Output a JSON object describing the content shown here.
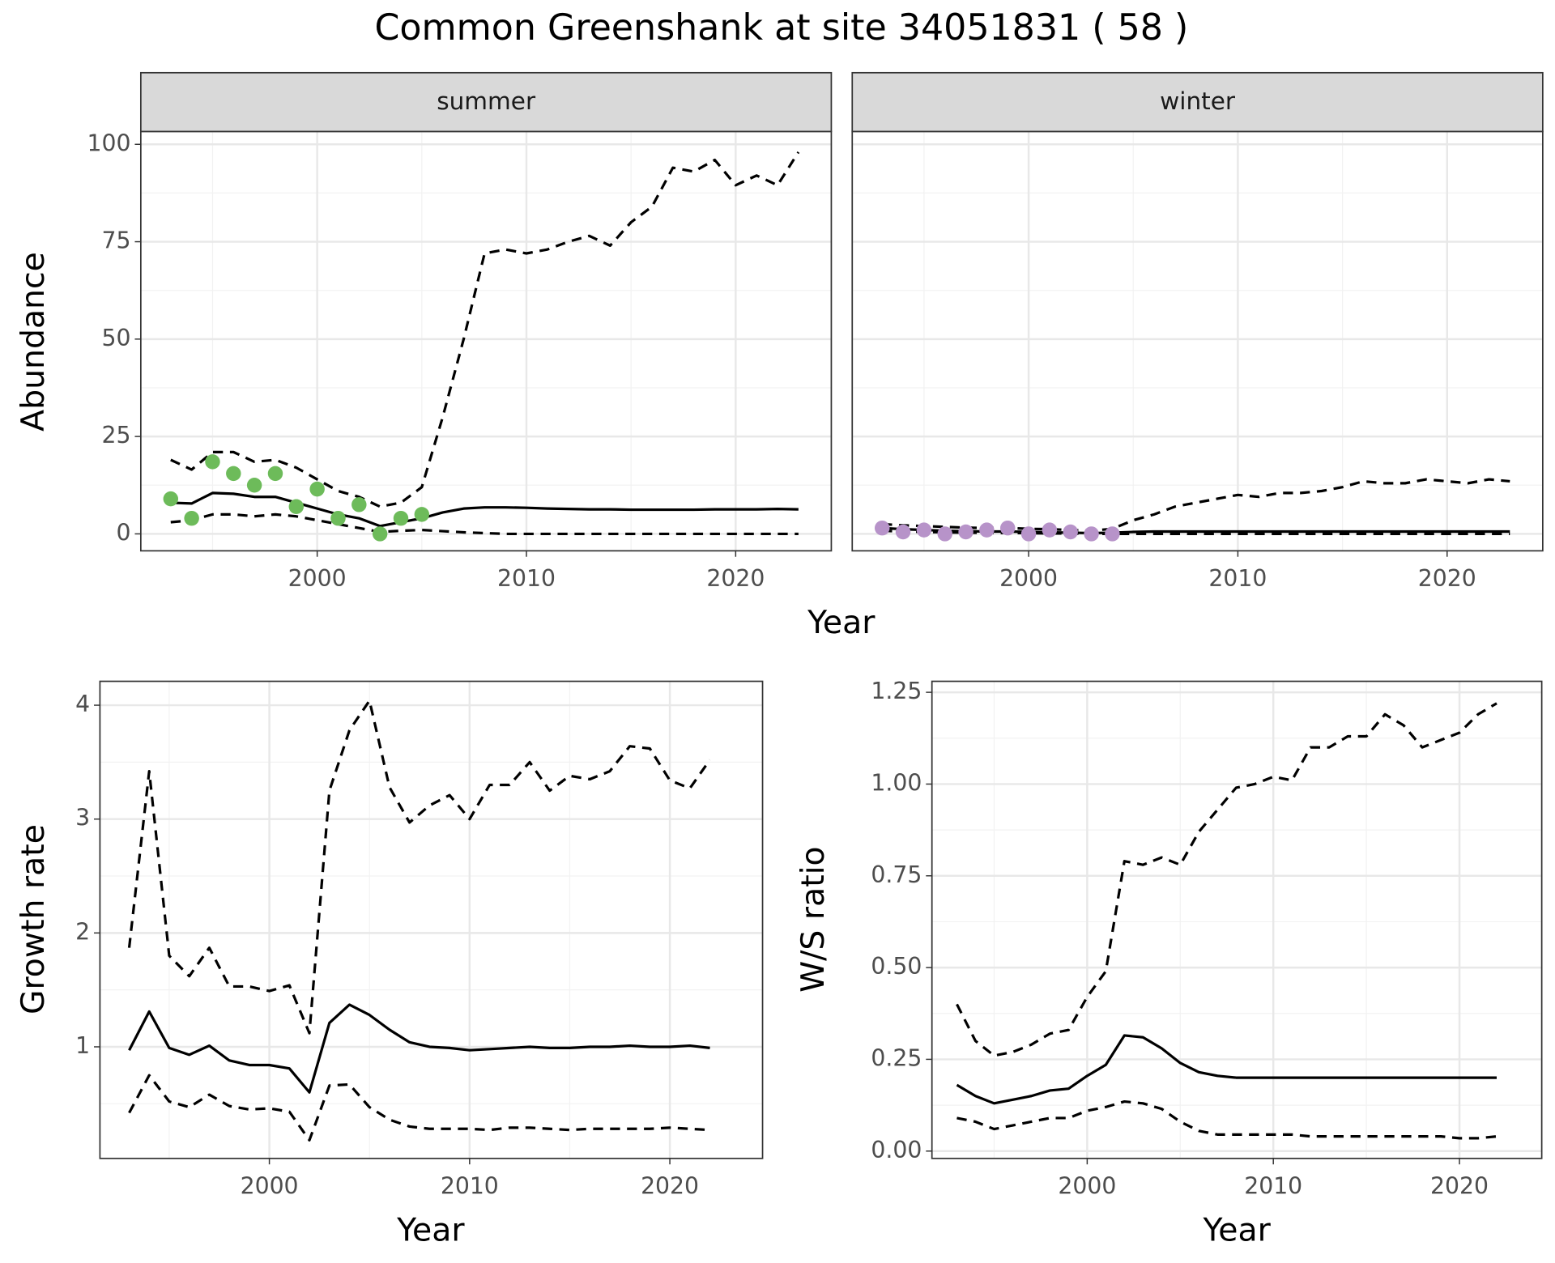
{
  "title": "Common Greenshank at site 34051831 ( 58 )",
  "chart_data": [
    {
      "type": "line",
      "xlabel": "Year",
      "ylabel": "Abundance",
      "xlim": [
        1991.57,
        2024.57
      ],
      "ylim": [
        -4.35,
        103.3
      ],
      "xticks": [
        2000,
        2010,
        2020
      ],
      "yticks": [
        0,
        25,
        50,
        75,
        100
      ],
      "grid": true,
      "facets": [
        {
          "label": "summer",
          "x": [
            1993,
            1994,
            1995,
            1996,
            1997,
            1998,
            1999,
            2000,
            2001,
            2002,
            2003,
            2004,
            2005,
            2006,
            2007,
            2008,
            2009,
            2010,
            2011,
            2012,
            2013,
            2014,
            2015,
            2016,
            2017,
            2018,
            2019,
            2020,
            2021,
            2022,
            2023
          ],
          "series": [
            {
              "type": "line",
              "linestyle": "solid",
              "color": "#000000",
              "values": [
                8,
                7.8,
                10.5,
                10.3,
                9.5,
                9.5,
                8,
                6.5,
                5,
                4,
                2,
                3,
                4,
                5.5,
                6.5,
                6.8,
                6.8,
                6.7,
                6.5,
                6.4,
                6.3,
                6.3,
                6.2,
                6.2,
                6.2,
                6.2,
                6.3,
                6.3,
                6.3,
                6.4,
                6.3
              ]
            },
            {
              "type": "line",
              "linestyle": "dashed",
              "color": "#000000",
              "values": [
                3,
                3.5,
                5,
                5,
                4.5,
                5,
                4.5,
                3.5,
                2.5,
                1.5,
                0.5,
                0.8,
                1,
                0.7,
                0.4,
                0.2,
                0,
                0,
                0,
                0,
                0,
                0,
                0,
                0,
                0,
                0,
                0,
                0,
                0,
                0,
                0
              ]
            },
            {
              "type": "line",
              "linestyle": "dashed",
              "color": "#000000",
              "values": [
                19,
                16.5,
                21,
                21,
                18.5,
                19,
                17,
                14,
                11,
                9.5,
                7,
                8,
                12,
                30,
                50,
                72,
                73,
                72,
                73,
                75,
                76.5,
                74,
                80,
                84,
                94,
                93,
                96,
                89.5,
                92,
                89.5,
                98
              ]
            },
            {
              "type": "scatter",
              "color": "#6dbb5a",
              "values": [
                9,
                4,
                18.5,
                15.5,
                12.5,
                15.5,
                7,
                11.5,
                4,
                7.5,
                0,
                4,
                5,
                null,
                null,
                null,
                null,
                null,
                null,
                null,
                null,
                null,
                null,
                null,
                null,
                null,
                null,
                null,
                null,
                null,
                null
              ]
            }
          ]
        },
        {
          "label": "winter",
          "x": [
            1993,
            1994,
            1995,
            1996,
            1997,
            1998,
            1999,
            2000,
            2001,
            2002,
            2003,
            2004,
            2005,
            2006,
            2007,
            2008,
            2009,
            2010,
            2011,
            2012,
            2013,
            2014,
            2015,
            2016,
            2017,
            2018,
            2019,
            2020,
            2021,
            2022,
            2023
          ],
          "series": [
            {
              "type": "line",
              "linestyle": "solid",
              "color": "#000000",
              "values": [
                1.5,
                1.2,
                1.0,
                0.8,
                0.7,
                0.6,
                0.6,
                0.5,
                0.4,
                0.3,
                0.2,
                0.3,
                0.5,
                0.6,
                0.6,
                0.6,
                0.6,
                0.6,
                0.6,
                0.6,
                0.6,
                0.6,
                0.6,
                0.6,
                0.6,
                0.6,
                0.6,
                0.6,
                0.6,
                0.6,
                0.6
              ]
            },
            {
              "type": "line",
              "linestyle": "dashed",
              "color": "#000000",
              "values": [
                0.8,
                0.6,
                0.5,
                0.4,
                0.3,
                0.3,
                0.2,
                0.2,
                0.1,
                0.1,
                0,
                0,
                0,
                0,
                0,
                0,
                0,
                0,
                0,
                0,
                0,
                0,
                0,
                0,
                0,
                0,
                0,
                0,
                0,
                0,
                0
              ]
            },
            {
              "type": "line",
              "linestyle": "dashed",
              "color": "#000000",
              "values": [
                2.5,
                2.2,
                2.0,
                1.8,
                1.6,
                1.5,
                1.5,
                1.3,
                1.2,
                1.0,
                0.8,
                1.3,
                3.5,
                5,
                7,
                8,
                9,
                10,
                9.5,
                10.5,
                10.5,
                11,
                12,
                13.5,
                13,
                13,
                14,
                13.5,
                13,
                14,
                13.5
              ]
            },
            {
              "type": "scatter",
              "color": "#b793c9",
              "values": [
                1.5,
                0.5,
                1,
                0,
                0.5,
                1,
                1.5,
                0,
                1,
                0.5,
                0,
                0,
                null,
                null,
                null,
                null,
                null,
                null,
                null,
                null,
                null,
                null,
                null,
                null,
                null,
                null,
                null,
                null,
                null,
                null,
                null
              ]
            }
          ]
        }
      ]
    },
    {
      "type": "line",
      "xlabel": "Year",
      "ylabel": "Growth rate",
      "xlim": [
        1991.54,
        2024.63
      ],
      "ylim": [
        0.02,
        4.21
      ],
      "xticks": [
        2000,
        2010,
        2020
      ],
      "yticks": [
        1,
        2,
        3,
        4
      ],
      "grid": true,
      "facets": [
        {
          "x": [
            1993,
            1994,
            1995,
            1996,
            1997,
            1998,
            1999,
            2000,
            2001,
            2002,
            2003,
            2004,
            2005,
            2006,
            2007,
            2008,
            2009,
            2010,
            2011,
            2012,
            2013,
            2014,
            2015,
            2016,
            2017,
            2018,
            2019,
            2020,
            2021,
            2022
          ],
          "series": [
            {
              "type": "line",
              "linestyle": "solid",
              "color": "#000000",
              "values": [
                0.97,
                1.31,
                0.99,
                0.93,
                1.01,
                0.88,
                0.84,
                0.84,
                0.81,
                0.6,
                1.21,
                1.37,
                1.28,
                1.15,
                1.04,
                1.0,
                0.99,
                0.97,
                0.98,
                0.99,
                1.0,
                0.99,
                0.99,
                1.0,
                1.0,
                1.01,
                1.0,
                1.0,
                1.01,
                0.99
              ]
            },
            {
              "type": "line",
              "linestyle": "dashed",
              "color": "#000000",
              "values": [
                0.42,
                0.75,
                0.52,
                0.47,
                0.58,
                0.48,
                0.45,
                0.46,
                0.43,
                0.18,
                0.66,
                0.67,
                0.47,
                0.36,
                0.3,
                0.28,
                0.28,
                0.28,
                0.27,
                0.29,
                0.29,
                0.28,
                0.27,
                0.28,
                0.28,
                0.28,
                0.28,
                0.29,
                0.28,
                0.27
              ]
            },
            {
              "type": "line",
              "linestyle": "dashed",
              "color": "#000000",
              "values": [
                1.87,
                3.42,
                1.8,
                1.62,
                1.87,
                1.53,
                1.53,
                1.49,
                1.54,
                1.12,
                3.25,
                3.78,
                4.04,
                3.28,
                2.97,
                3.12,
                3.21,
                3.0,
                3.3,
                3.3,
                3.5,
                3.25,
                3.38,
                3.35,
                3.42,
                3.64,
                3.62,
                3.34,
                3.27,
                3.52
              ]
            }
          ]
        }
      ]
    },
    {
      "type": "line",
      "xlabel": "Year",
      "ylabel": "W/S ratio",
      "xlim": [
        1991.66,
        2024.42
      ],
      "ylim": [
        -0.02,
        1.28
      ],
      "xticks": [
        2000,
        2010,
        2020
      ],
      "yticks": [
        {
          "value": 0,
          "label": "0.00"
        },
        0.25,
        {
          "value": 0.5,
          "label": "0.50"
        },
        {
          "value": 0.75,
          "label": "0.75"
        },
        {
          "value": 1,
          "label": "1.00"
        },
        {
          "value": 1.25,
          "label": "1.25"
        }
      ],
      "grid": true,
      "facets": [
        {
          "x": [
            1993,
            1994,
            1995,
            1996,
            1997,
            1998,
            1999,
            2000,
            2001,
            2002,
            2003,
            2004,
            2005,
            2006,
            2007,
            2008,
            2009,
            2010,
            2011,
            2012,
            2013,
            2014,
            2015,
            2016,
            2017,
            2018,
            2019,
            2020,
            2021,
            2022
          ],
          "series": [
            {
              "type": "line",
              "linestyle": "solid",
              "color": "#000000",
              "values": [
                0.18,
                0.15,
                0.13,
                0.14,
                0.15,
                0.165,
                0.17,
                0.205,
                0.235,
                0.315,
                0.31,
                0.28,
                0.24,
                0.215,
                0.205,
                0.2,
                0.2,
                0.2,
                0.2,
                0.2,
                0.2,
                0.2,
                0.2,
                0.2,
                0.2,
                0.2,
                0.2,
                0.2,
                0.2,
                0.2
              ]
            },
            {
              "type": "line",
              "linestyle": "dashed",
              "color": "#000000",
              "values": [
                0.09,
                0.08,
                0.06,
                0.07,
                0.08,
                0.09,
                0.09,
                0.11,
                0.12,
                0.135,
                0.13,
                0.115,
                0.08,
                0.055,
                0.045,
                0.045,
                0.045,
                0.045,
                0.045,
                0.04,
                0.04,
                0.04,
                0.04,
                0.04,
                0.04,
                0.04,
                0.04,
                0.035,
                0.035,
                0.04
              ]
            },
            {
              "type": "line",
              "linestyle": "dashed",
              "color": "#000000",
              "values": [
                0.4,
                0.3,
                0.26,
                0.27,
                0.29,
                0.32,
                0.33,
                0.42,
                0.49,
                0.79,
                0.78,
                0.8,
                0.78,
                0.87,
                0.93,
                0.99,
                1.0,
                1.02,
                1.01,
                1.1,
                1.1,
                1.13,
                1.13,
                1.19,
                1.16,
                1.1,
                1.12,
                1.14,
                1.19,
                1.22
              ]
            }
          ]
        }
      ]
    }
  ]
}
